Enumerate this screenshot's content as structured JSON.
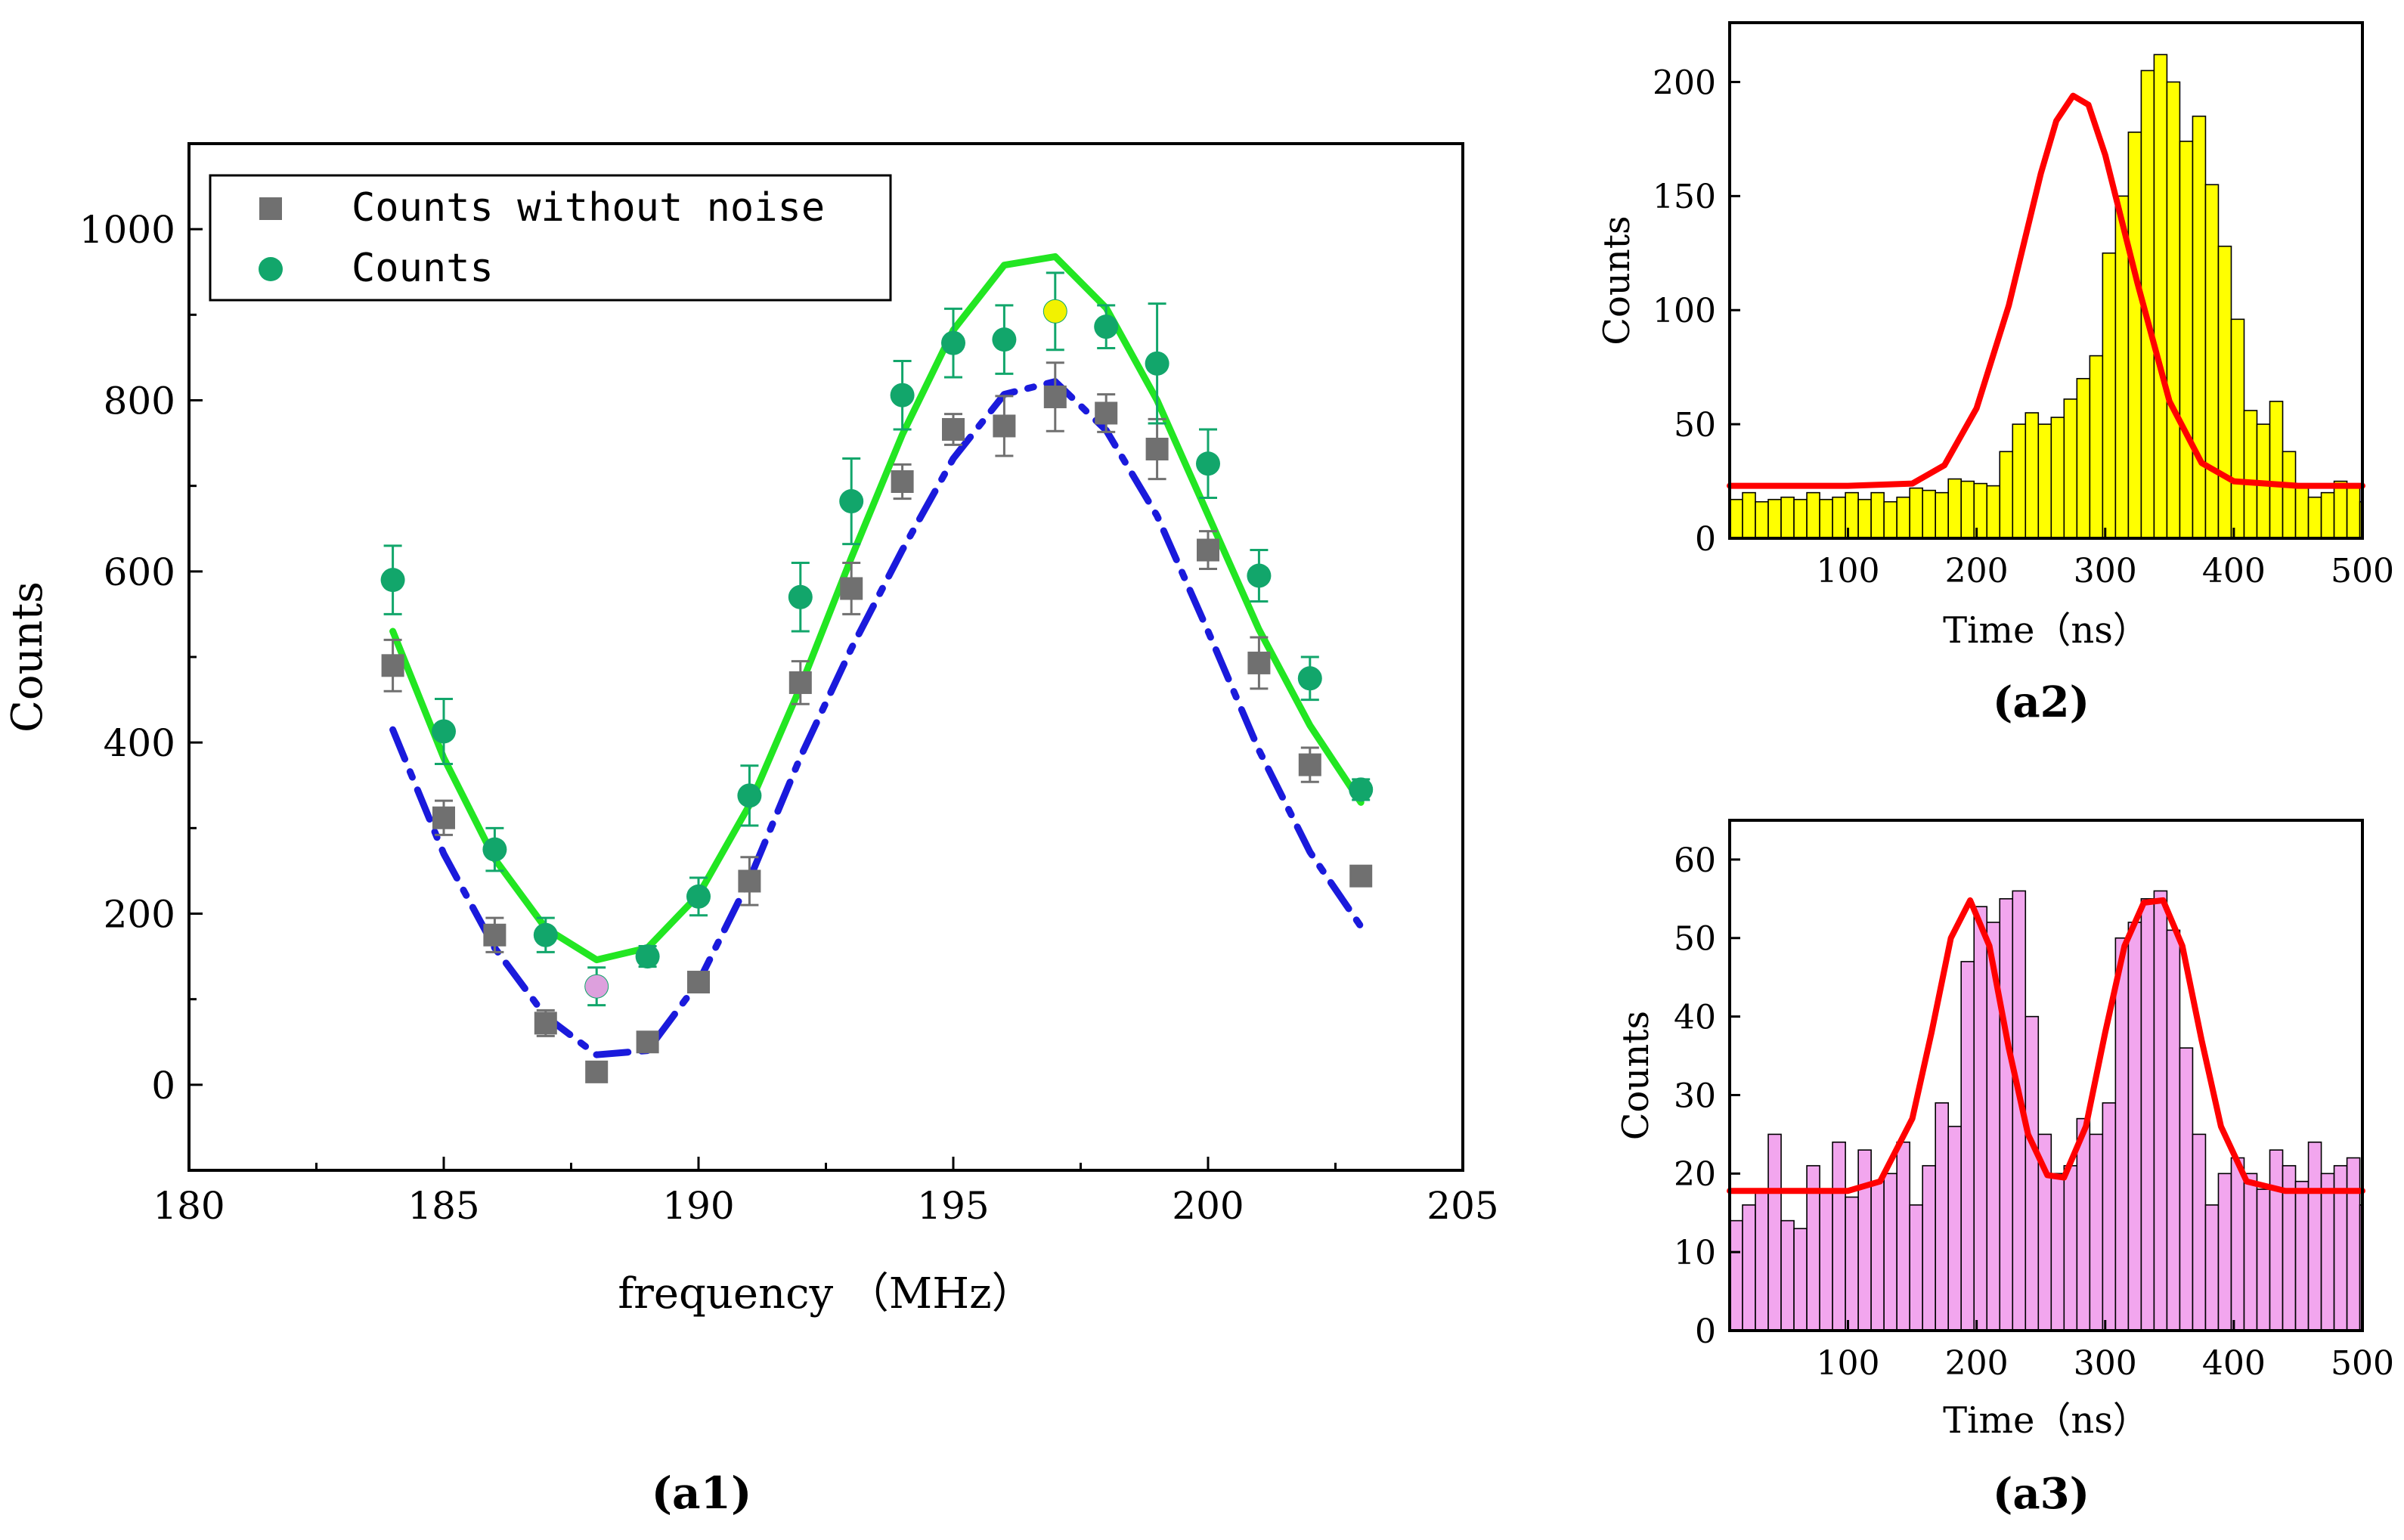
{
  "chart_data": [
    {
      "id": "a1",
      "type": "scatter",
      "caption": "(a1)",
      "xlabel": "frequency （MHz）",
      "ylabel": "Counts",
      "xlim": [
        180,
        205
      ],
      "ylim": [
        -100,
        1100
      ],
      "xticks": [
        180,
        185,
        190,
        195,
        200,
        205
      ],
      "yticks": [
        0,
        200,
        400,
        600,
        800,
        1000
      ],
      "legend_position": "top-left",
      "series": [
        {
          "name": "Counts without noise",
          "marker": "square",
          "color": "#707070",
          "error_color": "#707070",
          "x": [
            184,
            185,
            186,
            187,
            188,
            189,
            190,
            191,
            192,
            193,
            194,
            195,
            196,
            197,
            198,
            199,
            200,
            201,
            202,
            203
          ],
          "y": [
            490,
            312,
            175,
            72,
            15,
            50,
            120,
            238,
            470,
            580,
            705,
            766,
            770,
            804,
            785,
            743,
            625,
            493,
            374,
            244
          ],
          "err": [
            30,
            20,
            20,
            15,
            0,
            10,
            10,
            28,
            25,
            30,
            20,
            18,
            35,
            40,
            22,
            35,
            22,
            30,
            20,
            0
          ]
        },
        {
          "name": "Counts",
          "marker": "circle",
          "color": "#12a66b",
          "error_color": "#12a66b",
          "x": [
            184,
            185,
            186,
            187,
            188,
            189,
            190,
            191,
            192,
            193,
            194,
            195,
            196,
            197,
            198,
            199,
            200,
            201,
            202,
            203
          ],
          "y": [
            590,
            413,
            275,
            175,
            115,
            150,
            220,
            338,
            570,
            682,
            806,
            867,
            871,
            904,
            886,
            843,
            726,
            595,
            475,
            345
          ],
          "err": [
            40,
            38,
            25,
            20,
            22,
            12,
            22,
            35,
            40,
            50,
            40,
            40,
            40,
            45,
            25,
            70,
            40,
            30,
            25,
            12
          ]
        }
      ],
      "highlights": [
        {
          "x": 188,
          "y": 115,
          "color": "#dda0dd"
        },
        {
          "x": 197,
          "y": 904,
          "color": "#f2f200"
        }
      ],
      "fits": [
        {
          "style": "solid",
          "color": "#22e622",
          "x": [
            184,
            185,
            186,
            187,
            188,
            189,
            190,
            191,
            192,
            193,
            194,
            195,
            196,
            197,
            198,
            199,
            200,
            201,
            202,
            203
          ],
          "y": [
            530,
            382,
            264,
            183,
            146,
            160,
            222,
            327,
            465,
            616,
            760,
            882,
            958,
            968,
            908,
            800,
            666,
            532,
            420,
            330
          ]
        },
        {
          "style": "dashdot",
          "color": "#1a1adc",
          "x": [
            184,
            185,
            186,
            187,
            188,
            189,
            190,
            191,
            192,
            193,
            194,
            195,
            196,
            197,
            198,
            199,
            200,
            201,
            202,
            203
          ],
          "y": [
            415,
            270,
            160,
            80,
            35,
            40,
            120,
            240,
            383,
            510,
            625,
            732,
            807,
            822,
            765,
            665,
            530,
            391,
            272,
            185
          ]
        }
      ]
    },
    {
      "id": "a2",
      "type": "bar",
      "caption": "(a2)",
      "xlabel": "Time（ns）",
      "ylabel": "Counts",
      "xlim": [
        8,
        500
      ],
      "ylim": [
        0,
        226
      ],
      "xticks": [
        100,
        200,
        300,
        400,
        500
      ],
      "yticks": [
        0,
        50,
        100,
        150,
        200
      ],
      "bar_color": "#ffff00",
      "bar_start": 8,
      "bin_width": 10,
      "values": [
        17,
        20,
        16,
        17,
        18,
        17,
        20,
        17,
        18,
        20,
        17,
        20,
        16,
        18,
        22,
        21,
        20,
        26,
        25,
        24,
        23,
        38,
        50,
        55,
        50,
        53,
        61,
        70,
        80,
        125,
        150,
        178,
        205,
        212,
        200,
        174,
        185,
        155,
        128,
        96,
        56,
        50,
        60,
        38,
        22,
        18,
        20,
        25,
        22,
        16,
        20,
        20,
        24,
        20,
        17,
        16,
        16,
        17,
        16,
        15
      ],
      "fit": {
        "color": "#ff0000",
        "x": [
          8,
          50,
          100,
          150,
          175,
          200,
          225,
          250,
          262,
          275,
          287,
          300,
          325,
          350,
          375,
          400,
          450,
          500
        ],
        "y": [
          23,
          23,
          23,
          24,
          32,
          57,
          102,
          160,
          183,
          194,
          190,
          168,
          112,
          60,
          33,
          25,
          23,
          23
        ]
      }
    },
    {
      "id": "a3",
      "type": "bar",
      "caption": "(a3)",
      "xlabel": "Time（ns）",
      "ylabel": "Counts",
      "xlim": [
        8,
        500
      ],
      "ylim": [
        0,
        65
      ],
      "xticks": [
        100,
        200,
        300,
        400,
        500
      ],
      "yticks": [
        0,
        10,
        20,
        30,
        40,
        50,
        60
      ],
      "bar_color": "#f2a6ee",
      "bar_start": 8,
      "bin_width": 10,
      "values": [
        14,
        16,
        18,
        25,
        14,
        13,
        21,
        18,
        24,
        17,
        23,
        19,
        20,
        24,
        16,
        21,
        29,
        26,
        47,
        54,
        52,
        55,
        56,
        40,
        25,
        20,
        21,
        27,
        25,
        29,
        50,
        52,
        55,
        56,
        51,
        36,
        25,
        16,
        20,
        22,
        20,
        18,
        23,
        21,
        19,
        24,
        20,
        21,
        22,
        16
      ],
      "fit": {
        "color": "#ff0000",
        "x": [
          8,
          100,
          125,
          150,
          165,
          180,
          195,
          210,
          225,
          240,
          255,
          268,
          285,
          300,
          315,
          330,
          345,
          360,
          375,
          390,
          410,
          440,
          500
        ],
        "y": [
          17.8,
          17.8,
          19,
          27,
          38,
          50,
          54.8,
          49,
          36,
          25,
          19.8,
          19.5,
          26,
          38,
          49,
          54.5,
          54.8,
          49,
          37,
          26,
          19,
          17.8,
          17.8
        ]
      }
    }
  ]
}
